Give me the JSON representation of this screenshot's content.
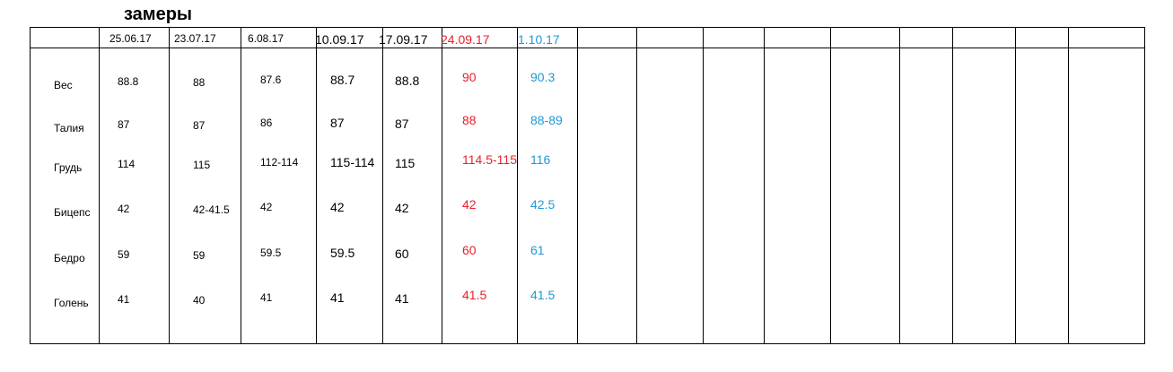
{
  "title": "замеры",
  "table": {
    "columns": [
      {
        "date": "25.06.17",
        "color": "#000000"
      },
      {
        "date": "23.07.17",
        "color": "#000000"
      },
      {
        "date": "6.08.17",
        "color": "#000000"
      },
      {
        "date": "10.09.17",
        "color": "#000000"
      },
      {
        "date": "17.09.17",
        "color": "#000000"
      },
      {
        "date": "24.09.17",
        "color": "#e8202a"
      },
      {
        "date": "1.10.17",
        "color": "#1e9ad6"
      }
    ],
    "rows": [
      {
        "label": "Вес",
        "values": [
          88.8,
          88,
          87.6,
          88.7,
          88.8,
          90,
          90.3
        ]
      },
      {
        "label": "Талия",
        "values": [
          87,
          87,
          86,
          87,
          87,
          88,
          "88-89"
        ]
      },
      {
        "label": "Грудь",
        "values": [
          114,
          115,
          "112-114",
          "115-114",
          115,
          "114.5-115",
          116
        ]
      },
      {
        "label": "Бицепс",
        "values": [
          42,
          "42-41.5",
          42,
          42,
          42,
          42,
          42.5
        ]
      },
      {
        "label": "Бедро",
        "values": [
          59,
          59,
          59.5,
          59.5,
          60,
          60,
          61
        ]
      },
      {
        "label": "Голень",
        "values": [
          41,
          40,
          41,
          41,
          41,
          41.5,
          41.5
        ]
      }
    ]
  }
}
